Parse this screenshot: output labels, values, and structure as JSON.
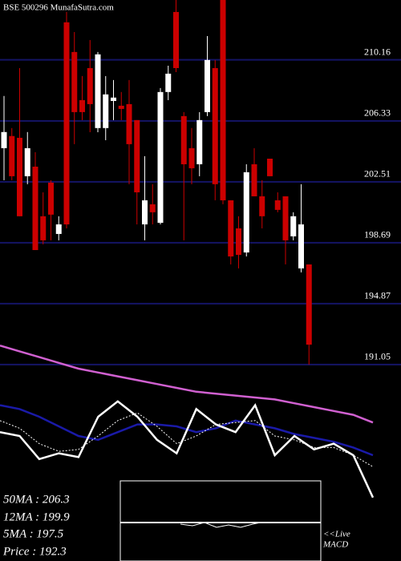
{
  "chart_data": [
    {
      "type": "candlestick",
      "title": "BSE 500296 MunafaSutra.com",
      "up_color": "#ffffff",
      "down_color": "#cc0000",
      "grid_color": "#141466",
      "ylim": [
        190.04,
        213.91
      ],
      "yticks": [
        191.05,
        194.87,
        198.69,
        202.51,
        206.33,
        210.16
      ],
      "open": [
        204.62,
        205.38,
        205.27,
        202.86,
        203.46,
        200.35,
        202.46,
        199.24,
        212.51,
        210.65,
        207.63,
        209.64,
        205.88,
        205.88,
        207.58,
        207.28,
        207.38,
        206.38,
        199.84,
        201.1,
        199.94,
        208.14,
        213.16,
        206.63,
        204.62,
        203.61,
        206.88,
        209.64,
        213.91,
        201.35,
        199.59,
        198.08,
        203.61,
        201.6,
        203.96,
        201.35,
        201.6,
        199.09,
        197.08,
        197.33
      ],
      "high": [
        207.89,
        205.88,
        209.64,
        205.63,
        204.37,
        201.85,
        202.61,
        200.35,
        213.16,
        211.9,
        209.14,
        211.4,
        210.65,
        209.14,
        208.89,
        208.14,
        208.89,
        206.38,
        204.12,
        202.36,
        208.39,
        209.79,
        213.91,
        206.88,
        205.88,
        206.88,
        211.65,
        210.15,
        213.91,
        201.35,
        200.35,
        203.61,
        204.62,
        202.61,
        203.96,
        201.85,
        201.6,
        200.6,
        202.36,
        197.33
      ],
      "low": [
        202.61,
        202.61,
        200.35,
        202.36,
        198.23,
        198.59,
        198.84,
        198.84,
        199.59,
        204.87,
        206.38,
        205.62,
        205.62,
        205.12,
        206.38,
        206.38,
        202.36,
        199.84,
        198.84,
        199.84,
        199.84,
        207.63,
        209.39,
        198.84,
        202.36,
        202.86,
        206.63,
        201.35,
        201.1,
        197.33,
        197.08,
        197.83,
        201.6,
        199.59,
        202.86,
        200.6,
        197.33,
        198.84,
        196.83,
        191.05
      ],
      "close": [
        205.63,
        202.86,
        200.35,
        204.62,
        198.23,
        198.84,
        200.45,
        199.84,
        199.84,
        206.88,
        206.88,
        207.38,
        210.5,
        207.99,
        207.79,
        207.08,
        204.87,
        201.85,
        201.35,
        200.6,
        208.14,
        209.29,
        209.64,
        203.61,
        203.36,
        206.38,
        210.15,
        202.36,
        201.35,
        197.83,
        197.93,
        203.11,
        201.6,
        200.35,
        202.86,
        200.75,
        198.84,
        200.35,
        199.84,
        192.3
      ]
    },
    {
      "type": "line",
      "ylim": [
        0,
        100
      ],
      "series": [
        {
          "name": "50MA",
          "color": "#d060d0",
          "values": [
            87,
            84,
            81,
            78,
            75,
            73,
            71,
            69,
            67,
            65,
            63,
            62,
            61,
            60,
            59,
            57,
            55,
            53,
            51,
            47
          ]
        },
        {
          "name": "12MA",
          "color": "#1a1aa8",
          "values": [
            56,
            54,
            50,
            45,
            40,
            38,
            42,
            46,
            46,
            45,
            42,
            44,
            48,
            46,
            44,
            41,
            39,
            37,
            34,
            30
          ]
        },
        {
          "name": "5MA",
          "color": "#ffffff",
          "dashed": true,
          "values": [
            48,
            44,
            36,
            32,
            33,
            40,
            48,
            52,
            45,
            36,
            40,
            46,
            47,
            48,
            40,
            38,
            34,
            34,
            30,
            24
          ]
        },
        {
          "name": "Price",
          "color": "#ffffff",
          "values": [
            42,
            40,
            28,
            31,
            29,
            50,
            58,
            50,
            38,
            31,
            54,
            46,
            42,
            56,
            30,
            40,
            33,
            36,
            30,
            8
          ]
        }
      ]
    }
  ],
  "legend_text": [
    "50MA : 206.3",
    "12MA : 199.9",
    "5MA : 197.5",
    "Price : 192.3"
  ],
  "macd_label": [
    "<<Live",
    "MACD"
  ]
}
